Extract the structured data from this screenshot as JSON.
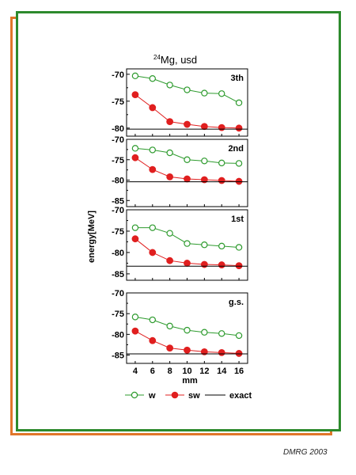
{
  "title": {
    "superscript": "24",
    "text": "Mg, usd"
  },
  "credit": "DMRG 2003",
  "colors": {
    "w": "#2e9b2e",
    "sw": "#e01f1f",
    "exact": "#000000",
    "frame_outer": "#e0762a",
    "frame_inner": "#2d8a2d"
  },
  "chart_data": {
    "type": "line",
    "xlabel": "mm",
    "ylabel": "energy[MeV]",
    "x": [
      4,
      6,
      8,
      10,
      12,
      14,
      16
    ],
    "xticks": [
      "4",
      "6",
      "8",
      "10",
      "12",
      "14",
      "16"
    ],
    "legend": {
      "placement": "bottom",
      "entries": [
        "w",
        "sw",
        "exact"
      ]
    },
    "panels": [
      {
        "label": "3th",
        "ylim": [
          -81.5,
          -69
        ],
        "yticks": [
          "-70",
          "-75",
          "-80"
        ],
        "series": [
          {
            "name": "w",
            "values": [
              -70.3,
              -70.8,
              -72.0,
              -72.9,
              -73.5,
              -73.6,
              -75.3
            ]
          },
          {
            "name": "sw",
            "values": [
              -73.8,
              -76.2,
              -78.8,
              -79.3,
              -79.7,
              -79.9,
              -80.0
            ]
          },
          {
            "name": "exact",
            "value": -80.2
          }
        ]
      },
      {
        "label": "2nd",
        "ylim": [
          -86.5,
          -70
        ],
        "yticks": [
          "-70",
          "-75",
          "-80",
          "-85"
        ],
        "series": [
          {
            "name": "w",
            "values": [
              -72.2,
              -72.6,
              -73.3,
              -75.0,
              -75.3,
              -75.8,
              -75.9
            ]
          },
          {
            "name": "sw",
            "values": [
              -74.5,
              -77.4,
              -79.2,
              -79.7,
              -79.9,
              -80.1,
              -80.3
            ]
          },
          {
            "name": "exact",
            "value": -80.4
          }
        ]
      },
      {
        "label": "1st",
        "ylim": [
          -86.5,
          -70
        ],
        "yticks": [
          "-70",
          "-75",
          "-80",
          "-85"
        ],
        "series": [
          {
            "name": "w",
            "values": [
              -74.2,
              -74.2,
              -75.5,
              -77.9,
              -78.2,
              -78.5,
              -78.8
            ]
          },
          {
            "name": "sw",
            "values": [
              -76.8,
              -80.0,
              -81.9,
              -82.5,
              -82.8,
              -82.9,
              -83.1
            ]
          },
          {
            "name": "exact",
            "value": -83.2
          }
        ]
      },
      {
        "label": "g.s.",
        "ylim": [
          -87,
          -70
        ],
        "yticks": [
          "-70",
          "-75",
          "-80",
          "-85"
        ],
        "series": [
          {
            "name": "w",
            "values": [
              -75.8,
              -76.5,
              -78.0,
              -79.0,
              -79.5,
              -79.8,
              -80.3
            ]
          },
          {
            "name": "sw",
            "values": [
              -79.2,
              -81.5,
              -83.3,
              -83.8,
              -84.2,
              -84.4,
              -84.6
            ]
          },
          {
            "name": "exact",
            "value": -84.7
          }
        ]
      }
    ]
  }
}
